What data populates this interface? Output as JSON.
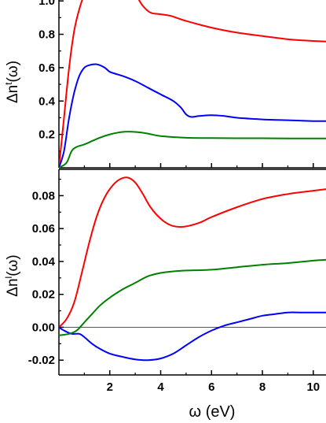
{
  "chart_data": [
    {
      "type": "line",
      "ylabel": "Δnᵗ(ω)",
      "ylabel_base": "Δn",
      "ylabel_sup": "t",
      "ylabel_arg": "(ω)",
      "xlim": [
        0,
        10.5
      ],
      "ylim": [
        0,
        1.1
      ],
      "yticks": [
        0.2,
        0.4,
        0.6,
        0.8,
        1.0
      ],
      "ytick_labels": [
        "0.2",
        "0.4",
        "0.6",
        "0.8",
        "1.0"
      ],
      "series": [
        {
          "color": "#ff0000",
          "x": [
            0,
            0.2,
            0.4,
            0.6,
            0.8,
            1.0,
            1.2,
            1.5,
            1.8,
            2.0,
            2.3,
            2.6,
            3.0,
            3.3,
            3.6,
            4.0,
            4.4,
            5.0,
            6.0,
            7.0,
            8.0,
            9.0,
            10.0,
            10.5
          ],
          "y": [
            0.0,
            0.3,
            0.6,
            0.82,
            0.95,
            1.04,
            1.1,
            1.14,
            1.15,
            1.15,
            1.13,
            1.1,
            1.04,
            0.97,
            0.93,
            0.92,
            0.91,
            0.88,
            0.84,
            0.81,
            0.79,
            0.77,
            0.76,
            0.757
          ]
        },
        {
          "color": "#0000ff",
          "x": [
            0,
            0.2,
            0.4,
            0.6,
            0.8,
            1.0,
            1.2,
            1.5,
            1.8,
            2.0,
            2.3,
            2.6,
            3.0,
            3.5,
            4.0,
            4.5,
            4.8,
            5.0,
            5.2,
            5.5,
            6.0,
            6.5,
            7.0,
            8.0,
            9.0,
            10.0,
            10.5
          ],
          "y": [
            0.0,
            0.1,
            0.3,
            0.45,
            0.55,
            0.6,
            0.615,
            0.62,
            0.6,
            0.575,
            0.56,
            0.545,
            0.52,
            0.48,
            0.44,
            0.4,
            0.36,
            0.32,
            0.305,
            0.31,
            0.315,
            0.31,
            0.3,
            0.29,
            0.285,
            0.28,
            0.28
          ]
        },
        {
          "color": "#008000",
          "x": [
            0,
            0.3,
            0.5,
            0.7,
            1.0,
            1.3,
            1.6,
            2.0,
            2.5,
            3.0,
            3.5,
            4.0,
            5.0,
            6.0,
            7.0,
            8.0,
            9.0,
            10.0,
            10.5
          ],
          "y": [
            0.0,
            0.03,
            0.1,
            0.125,
            0.14,
            0.16,
            0.18,
            0.2,
            0.215,
            0.215,
            0.205,
            0.19,
            0.18,
            0.178,
            0.177,
            0.177,
            0.176,
            0.176,
            0.176
          ]
        }
      ]
    },
    {
      "type": "line",
      "ylabel": "Δnˡ(ω)",
      "ylabel_base": "Δn",
      "ylabel_sup": "l",
      "ylabel_arg": "(ω)",
      "xlabel": "ω (eV)",
      "xlim": [
        0,
        10.5
      ],
      "ylim": [
        -0.029,
        0.096
      ],
      "xticks": [
        2,
        4,
        6,
        8,
        10
      ],
      "xtick_labels": [
        "2",
        "4",
        "6",
        "8",
        "10"
      ],
      "yticks": [
        -0.02,
        0.0,
        0.02,
        0.04,
        0.06,
        0.08
      ],
      "ytick_labels": [
        "-0.02",
        "0.00",
        "0.02",
        "0.04",
        "0.06",
        "0.08"
      ],
      "zero_line": true,
      "series": [
        {
          "color": "#ff0000",
          "x": [
            0,
            0.3,
            0.6,
            0.9,
            1.2,
            1.5,
            1.8,
            2.1,
            2.4,
            2.7,
            3.0,
            3.3,
            3.6,
            4.0,
            4.4,
            4.8,
            5.2,
            5.6,
            6.0,
            7.0,
            8.0,
            9.0,
            10.0,
            10.5
          ],
          "y": [
            0.0,
            0.005,
            0.015,
            0.033,
            0.052,
            0.068,
            0.079,
            0.086,
            0.09,
            0.091,
            0.088,
            0.081,
            0.073,
            0.066,
            0.062,
            0.061,
            0.062,
            0.064,
            0.067,
            0.073,
            0.078,
            0.081,
            0.083,
            0.084
          ]
        },
        {
          "color": "#0000ff",
          "x": [
            0,
            0.2,
            0.5,
            0.8,
            1.0,
            1.3,
            1.6,
            2.0,
            2.5,
            3.0,
            3.5,
            4.0,
            4.5,
            5.0,
            5.5,
            6.0,
            6.5,
            7.0,
            7.5,
            8.0,
            8.5,
            9.0,
            9.5,
            10.0,
            10.5
          ],
          "y": [
            0.0,
            -0.002,
            -0.004,
            -0.004,
            -0.006,
            -0.01,
            -0.013,
            -0.016,
            -0.018,
            -0.0195,
            -0.02,
            -0.019,
            -0.016,
            -0.011,
            -0.006,
            -0.002,
            0.001,
            0.003,
            0.005,
            0.007,
            0.008,
            0.009,
            0.009,
            0.009,
            0.009
          ]
        },
        {
          "color": "#008000",
          "x": [
            0,
            0.4,
            0.7,
            1.0,
            1.3,
            1.6,
            2.0,
            2.5,
            3.0,
            3.5,
            4.0,
            4.5,
            5.0,
            6.0,
            7.0,
            8.0,
            9.0,
            10.0,
            10.5
          ],
          "y": [
            -0.005,
            -0.004,
            -0.002,
            0.003,
            0.008,
            0.013,
            0.018,
            0.023,
            0.027,
            0.031,
            0.033,
            0.034,
            0.0345,
            0.035,
            0.0365,
            0.038,
            0.039,
            0.0405,
            0.041
          ]
        }
      ]
    }
  ]
}
